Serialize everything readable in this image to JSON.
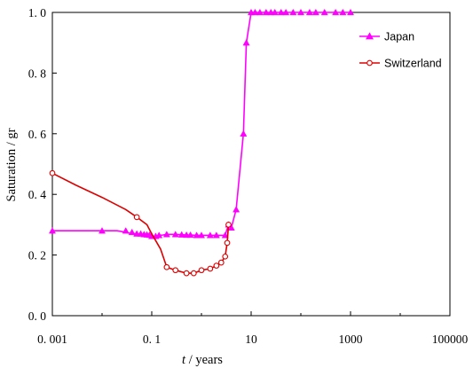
{
  "chart_data": {
    "type": "line",
    "xlabel_italic": "t",
    "xlabel_rest": " / years",
    "ylabel": "Saturation / gr",
    "x_scale": "log",
    "xlim": [
      0.001,
      100000
    ],
    "ylim": [
      0.0,
      1.0
    ],
    "x_ticks": [
      0.001,
      0.1,
      10,
      1000,
      100000
    ],
    "x_tick_labels": [
      "0. 001",
      "0. 1",
      "10",
      "1000",
      "100000"
    ],
    "y_ticks": [
      0.0,
      0.2,
      0.4,
      0.6,
      0.8,
      1.0
    ],
    "y_tick_labels": [
      "0. 0",
      "0. 2",
      "0. 4",
      "0. 6",
      "0. 8",
      "1. 0"
    ],
    "legend_position": "top-right",
    "grid": false,
    "series": [
      {
        "name": "Japan",
        "color": "#ff00ff",
        "marker": "triangle",
        "points": [
          [
            0.001,
            0.28
          ],
          [
            0.01,
            0.28
          ],
          [
            0.02,
            0.28
          ],
          [
            0.03,
            0.275
          ],
          [
            0.04,
            0.27
          ],
          [
            0.05,
            0.27
          ],
          [
            0.06,
            0.268
          ],
          [
            0.07,
            0.267
          ],
          [
            0.08,
            0.266
          ],
          [
            0.09,
            0.265
          ],
          [
            0.1,
            0.262
          ],
          [
            0.12,
            0.262
          ],
          [
            0.14,
            0.265
          ],
          [
            0.17,
            0.266
          ],
          [
            0.2,
            0.268
          ],
          [
            0.3,
            0.268
          ],
          [
            0.4,
            0.267
          ],
          [
            0.5,
            0.266
          ],
          [
            0.6,
            0.266
          ],
          [
            0.8,
            0.265
          ],
          [
            1,
            0.265
          ],
          [
            1.5,
            0.265
          ],
          [
            2,
            0.265
          ],
          [
            3,
            0.265
          ],
          [
            3.5,
            0.3
          ],
          [
            4,
            0.29
          ],
          [
            5,
            0.35
          ],
          [
            7,
            0.6
          ],
          [
            8,
            0.9
          ],
          [
            10,
            1.0
          ],
          [
            12,
            1.0
          ],
          [
            15,
            1.0
          ],
          [
            20,
            1.0
          ],
          [
            25,
            1.0
          ],
          [
            30,
            1.0
          ],
          [
            40,
            1.0
          ],
          [
            50,
            1.0
          ],
          [
            60,
            1.0
          ],
          [
            80,
            1.0
          ],
          [
            100,
            1.0
          ],
          [
            200,
            1.0
          ],
          [
            300,
            1.0
          ],
          [
            400,
            1.0
          ],
          [
            500,
            1.0
          ],
          [
            700,
            1.0
          ],
          [
            1000,
            1.0
          ]
        ],
        "marker_points": [
          [
            0.001,
            0.28
          ],
          [
            0.01,
            0.28
          ],
          [
            0.03,
            0.28
          ],
          [
            0.04,
            0.275
          ],
          [
            0.05,
            0.27
          ],
          [
            0.06,
            0.27
          ],
          [
            0.07,
            0.268
          ],
          [
            0.08,
            0.267
          ],
          [
            0.09,
            0.266
          ],
          [
            0.1,
            0.262
          ],
          [
            0.12,
            0.262
          ],
          [
            0.14,
            0.265
          ],
          [
            0.2,
            0.268
          ],
          [
            0.3,
            0.268
          ],
          [
            0.4,
            0.267
          ],
          [
            0.5,
            0.266
          ],
          [
            0.6,
            0.266
          ],
          [
            0.8,
            0.265
          ],
          [
            1,
            0.265
          ],
          [
            1.5,
            0.265
          ],
          [
            2,
            0.265
          ],
          [
            3,
            0.265
          ],
          [
            3.5,
            0.3
          ],
          [
            4,
            0.29
          ],
          [
            5,
            0.35
          ],
          [
            7,
            0.6
          ],
          [
            8,
            0.9
          ],
          [
            10,
            1.0
          ],
          [
            12,
            1.0
          ],
          [
            15,
            1.0
          ],
          [
            20,
            1.0
          ],
          [
            25,
            1.0
          ],
          [
            30,
            1.0
          ],
          [
            40,
            1.0
          ],
          [
            50,
            1.0
          ],
          [
            70,
            1.0
          ],
          [
            100,
            1.0
          ],
          [
            150,
            1.0
          ],
          [
            200,
            1.0
          ],
          [
            300,
            1.0
          ],
          [
            500,
            1.0
          ],
          [
            700,
            1.0
          ],
          [
            1000,
            1.0
          ]
        ]
      },
      {
        "name": "Switzerland",
        "color": "#dd0000",
        "marker": "circle",
        "points": [
          [
            0.001,
            0.47
          ],
          [
            0.003,
            0.43
          ],
          [
            0.01,
            0.39
          ],
          [
            0.03,
            0.35
          ],
          [
            0.05,
            0.325
          ],
          [
            0.08,
            0.3
          ],
          [
            0.1,
            0.27
          ],
          [
            0.15,
            0.22
          ],
          [
            0.2,
            0.16
          ],
          [
            0.3,
            0.15
          ],
          [
            0.5,
            0.14
          ],
          [
            0.7,
            0.14
          ],
          [
            1,
            0.15
          ],
          [
            1.5,
            0.155
          ],
          [
            2,
            0.165
          ],
          [
            2.5,
            0.175
          ],
          [
            3,
            0.195
          ],
          [
            3.3,
            0.24
          ],
          [
            3.5,
            0.3
          ]
        ],
        "marker_points": [
          [
            0.001,
            0.47
          ],
          [
            0.05,
            0.325
          ],
          [
            0.2,
            0.16
          ],
          [
            0.3,
            0.15
          ],
          [
            0.5,
            0.14
          ],
          [
            0.7,
            0.14
          ],
          [
            1,
            0.15
          ],
          [
            1.5,
            0.155
          ],
          [
            2,
            0.165
          ],
          [
            2.5,
            0.175
          ],
          [
            3,
            0.195
          ],
          [
            3.3,
            0.24
          ],
          [
            3.5,
            0.3
          ]
        ]
      }
    ]
  }
}
